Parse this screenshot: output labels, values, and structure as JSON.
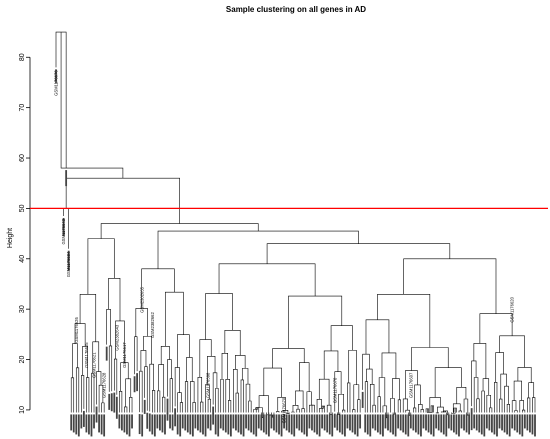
{
  "chart_data": {
    "type": "dendrogram",
    "title": "Sample clustering on all genes in AD",
    "ylabel": "Height",
    "xlabel": "",
    "ylim": [
      8,
      87
    ],
    "yticks": [
      10,
      20,
      30,
      40,
      50,
      60,
      70,
      80
    ],
    "grid": false,
    "cut_line": {
      "height": 50,
      "color": "#ff0000"
    },
    "line_color": "#000000",
    "labeled_leaves": [
      {
        "label": "GSM1176676",
        "height": 78.0
      },
      {
        "label": "GSM1176643",
        "height": 48.5
      },
      {
        "label": "GSM1176684",
        "height": 42.0
      },
      {
        "label": "GSM1176626",
        "height": 29.0
      },
      {
        "label": "GSM1176625",
        "height": 24.0
      },
      {
        "label": "GSM1176621",
        "height": 22.0
      },
      {
        "label": "GSM1176628",
        "height": 18.0
      },
      {
        "label": "GSM2382643",
        "height": 27.5
      },
      {
        "label": "GSM1176617",
        "height": 24.0
      },
      {
        "label": "GSM2382655",
        "height": 35.0
      },
      {
        "label": "GSM2382662",
        "height": 30.0
      },
      {
        "label": "GSM1176598",
        "height": 18.0
      },
      {
        "label": "GSM1176670",
        "height": 13.0
      },
      {
        "label": "GSM1176678",
        "height": 17.0
      },
      {
        "label": "GSM1176607",
        "height": 18.0
      },
      {
        "label": "GSM1176620",
        "height": 33.0
      }
    ]
  }
}
